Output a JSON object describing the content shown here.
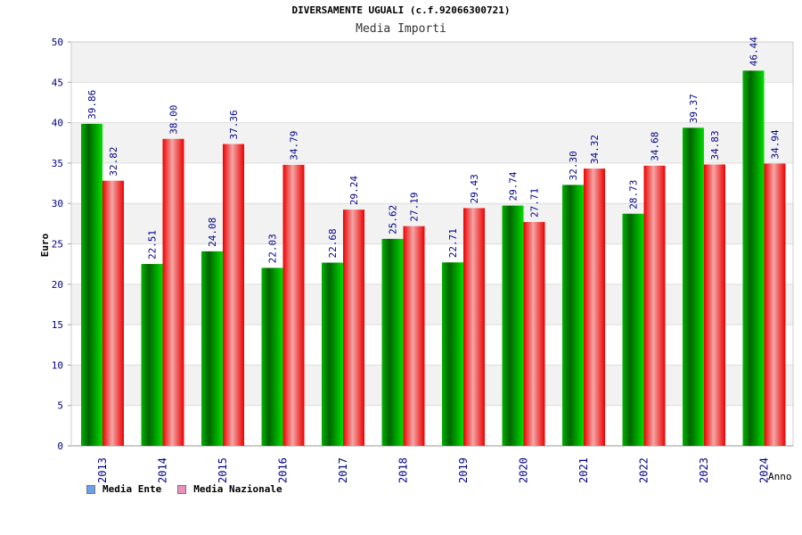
{
  "chart_data": {
    "type": "bar",
    "title": "DIVERSAMENTE UGUALI (c.f.92066300721)",
    "subtitle": "Media Importi",
    "xlabel": "Anno",
    "ylabel": "Euro",
    "ylim": [
      0,
      50
    ],
    "yticks": [
      "0",
      "5",
      "10",
      "15",
      "20",
      "25",
      "30",
      "35",
      "40",
      "45",
      "50"
    ],
    "categories": [
      "2013",
      "2014",
      "2015",
      "2016",
      "2017",
      "2018",
      "2019",
      "2020",
      "2021",
      "2022",
      "2023",
      "2024"
    ],
    "series": [
      {
        "name": "Media Ente",
        "color": "#00cc00",
        "legend_color": "#6aa0e8",
        "values": [
          39.86,
          22.51,
          24.08,
          22.03,
          22.68,
          25.62,
          22.71,
          29.74,
          32.3,
          28.73,
          39.37,
          46.44
        ],
        "labels": [
          "39.86",
          "22.51",
          "24.08",
          "22.03",
          "22.68",
          "25.62",
          "22.71",
          "29.74",
          "32.30",
          "28.73",
          "39.37",
          "46.44"
        ]
      },
      {
        "name": "Media Nazionale",
        "color": "#ee1111",
        "legend_color": "#e890c0",
        "values": [
          32.82,
          38.0,
          37.36,
          34.79,
          29.24,
          27.19,
          29.43,
          27.71,
          34.32,
          34.68,
          34.83,
          34.94
        ],
        "labels": [
          "32.82",
          "38.00",
          "37.36",
          "34.79",
          "29.24",
          "27.19",
          "29.43",
          "27.71",
          "34.32",
          "34.68",
          "34.83",
          "34.94"
        ]
      }
    ],
    "grid": true,
    "legend_position": "bottom-left"
  }
}
